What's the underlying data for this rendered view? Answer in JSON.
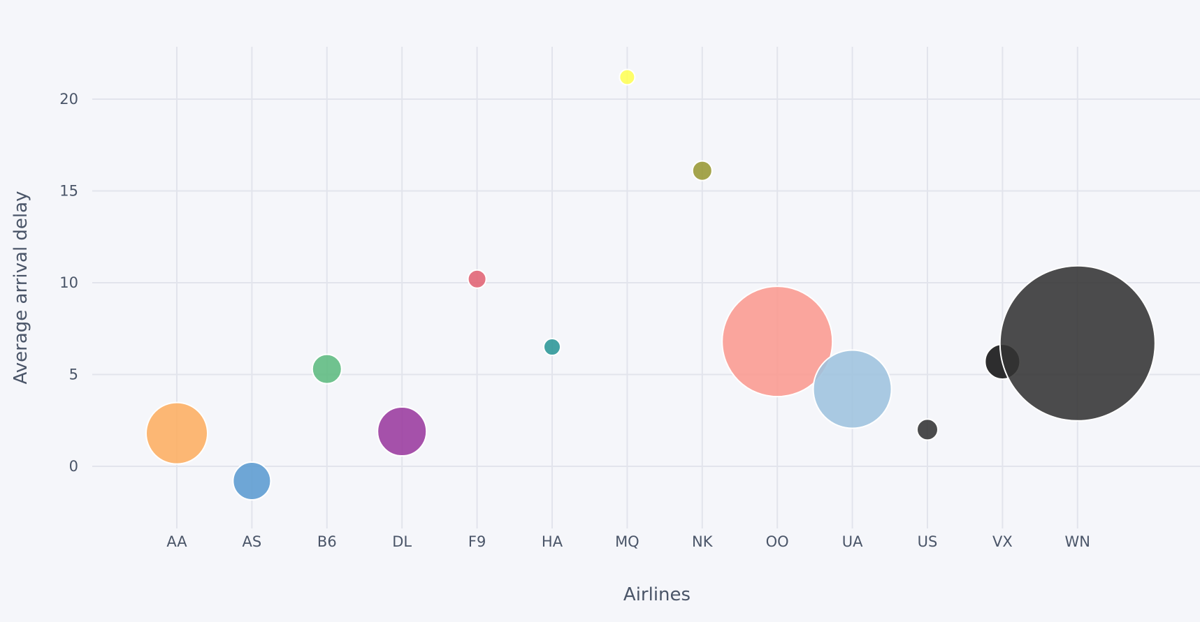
{
  "chart_data": {
    "type": "scatter",
    "subtype": "bubble",
    "title": "",
    "xlabel": "Airlines",
    "ylabel": "Average arrival delay",
    "categories": [
      "AA",
      "AS",
      "B6",
      "DL",
      "F9",
      "HA",
      "MQ",
      "NK",
      "OO",
      "UA",
      "US",
      "VX",
      "WN"
    ],
    "values": [
      1.8,
      -0.8,
      5.3,
      1.9,
      10.2,
      6.5,
      21.2,
      16.1,
      6.8,
      4.2,
      2.0,
      5.7,
      6.7
    ],
    "bubble_radius_px": [
      44,
      27,
      21,
      35,
      13,
      12,
      11,
      14,
      79,
      56,
      15,
      25,
      111
    ],
    "colors": [
      "#fdae61",
      "#5b9bd0",
      "#5dbb80",
      "#9a3a9e",
      "#e16373",
      "#2a9696",
      "#ffff55",
      "#999933",
      "#fb9a90",
      "#9ec3de",
      "#333333",
      "#111111",
      "#333333"
    ],
    "yticks": [
      0,
      5,
      10,
      15,
      20
    ],
    "ylim": [
      -3.5,
      23
    ],
    "grid": true,
    "legend": "none",
    "background": "#f5f6fa"
  },
  "axes": {
    "x_title": "Airlines",
    "y_title": "Average arrival delay",
    "y_tick_labels": [
      "0",
      "5",
      "10",
      "15",
      "20"
    ]
  }
}
